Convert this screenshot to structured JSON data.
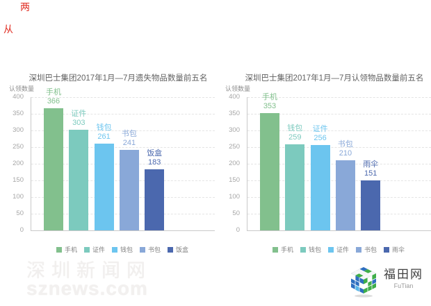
{
  "page": {
    "red_marks": [
      "两",
      "从"
    ]
  },
  "watermark": {
    "line1": "深圳新闻网",
    "line2": "sznews.com"
  },
  "futian": {
    "name": "福田网",
    "latin": "FuTian"
  },
  "chart_data": [
    {
      "type": "bar",
      "title": "深圳巴士集团2017年1月—7月遗失物品数量前五名",
      "ylabel": "认领数量",
      "categories": [
        "手机",
        "证件",
        "钱包",
        "书包",
        "饭盒"
      ],
      "values": [
        366,
        303,
        261,
        241,
        183
      ],
      "colors": [
        "#82c08d",
        "#7ccabe",
        "#6cc5ef",
        "#89a8d8",
        "#4b68ae"
      ],
      "ylim": [
        0,
        400
      ],
      "ystep": 50,
      "grid": true,
      "legend_position": "bottom"
    },
    {
      "type": "bar",
      "title": "深圳巴士集团2017年1月—7月认领物品数量前五名",
      "ylabel": "认领数量",
      "categories": [
        "手机",
        "钱包",
        "证件",
        "书包",
        "雨伞"
      ],
      "values": [
        353,
        259,
        256,
        210,
        151
      ],
      "colors": [
        "#82c08d",
        "#7ccabe",
        "#6cc5ef",
        "#89a8d8",
        "#4b68ae"
      ],
      "ylim": [
        0,
        400
      ],
      "ystep": 50,
      "grid": true,
      "legend_position": "bottom"
    }
  ]
}
